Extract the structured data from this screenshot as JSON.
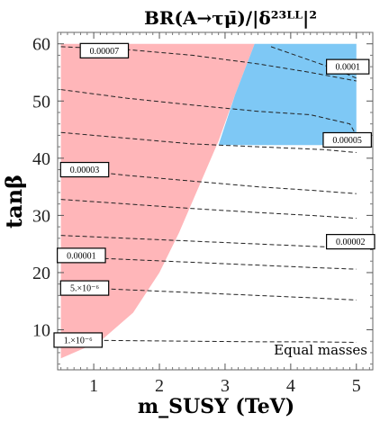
{
  "chart_data": {
    "type": "contour",
    "title": "BR(A→τμ̄)/|δ²³ᴸᴸ|²",
    "xlabel": "m_SUSY (TeV)",
    "ylabel": "tanβ",
    "xlim": [
      0.45,
      5.25
    ],
    "ylim": [
      3,
      62
    ],
    "xticks": [
      "1",
      "2",
      "3",
      "4",
      "5"
    ],
    "yticks": [
      "10",
      "20",
      "30",
      "40",
      "50",
      "60"
    ],
    "annotation": "Equal masses",
    "regions": [
      {
        "name": "pink-excluded",
        "color": "#ffb6b9",
        "boundary": [
          [
            0.5,
            5
          ],
          [
            1.1,
            8
          ],
          [
            1.6,
            13
          ],
          [
            2.0,
            20
          ],
          [
            2.3,
            27
          ],
          [
            2.6,
            35
          ],
          [
            2.9,
            43
          ],
          [
            3.15,
            51
          ],
          [
            3.45,
            60
          ],
          [
            0.5,
            60
          ]
        ]
      },
      {
        "name": "blue-excluded",
        "color": "#7ec8f5",
        "boundary": [
          [
            2.9,
            42.3
          ],
          [
            5.0,
            42.3
          ],
          [
            5.0,
            60
          ],
          [
            3.45,
            60
          ],
          [
            3.15,
            51
          ]
        ]
      }
    ],
    "contours": [
      {
        "label": "0.00007",
        "points": [
          [
            0.5,
            59.5
          ],
          [
            1.5,
            59.0
          ],
          [
            2.5,
            58.0
          ],
          [
            3.5,
            56.5
          ],
          [
            4.3,
            55.0
          ],
          [
            5.0,
            53.5
          ]
        ]
      },
      {
        "label": "0.0001",
        "points": [
          [
            3.7,
            59.5
          ],
          [
            4.2,
            57.5
          ],
          [
            4.7,
            55.5
          ],
          [
            5.0,
            54.0
          ]
        ]
      },
      {
        "label": "0.00005",
        "points": [
          [
            0.5,
            52.0
          ],
          [
            1.5,
            50.5
          ],
          [
            2.5,
            49.3
          ],
          [
            3.5,
            48.2
          ],
          [
            4.3,
            47.6
          ],
          [
            4.9,
            46.0
          ],
          [
            5.0,
            44.0
          ]
        ]
      },
      {
        "label": "",
        "points": [
          [
            0.5,
            44.5
          ],
          [
            1.5,
            43.5
          ],
          [
            2.5,
            42.5
          ],
          [
            3.5,
            42.0
          ],
          [
            4.5,
            41.5
          ],
          [
            5.0,
            41.0
          ]
        ]
      },
      {
        "label": "0.00003",
        "points": [
          [
            0.5,
            38.3
          ],
          [
            1.5,
            37.0
          ],
          [
            2.5,
            36.0
          ],
          [
            3.5,
            35.0
          ],
          [
            4.3,
            34.4
          ],
          [
            5.0,
            33.8
          ]
        ]
      },
      {
        "label": "",
        "points": [
          [
            0.5,
            32.8
          ],
          [
            1.5,
            32.0
          ],
          [
            2.5,
            31.2
          ],
          [
            3.5,
            30.5
          ],
          [
            4.3,
            30.0
          ],
          [
            5.0,
            29.5
          ]
        ]
      },
      {
        "label": "0.00002",
        "points": [
          [
            0.5,
            26.5
          ],
          [
            1.5,
            26.0
          ],
          [
            2.5,
            25.5
          ],
          [
            3.5,
            25.0
          ],
          [
            4.3,
            24.6
          ],
          [
            5.0,
            24.3
          ]
        ]
      },
      {
        "label": "0.00001",
        "points": [
          [
            0.5,
            22.8
          ],
          [
            1.5,
            22.3
          ],
          [
            2.5,
            21.8
          ],
          [
            3.5,
            21.3
          ],
          [
            4.3,
            20.9
          ],
          [
            5.0,
            20.6
          ]
        ]
      },
      {
        "label": "5.×10⁻⁶",
        "points": [
          [
            0.5,
            17.5
          ],
          [
            1.5,
            17.0
          ],
          [
            2.5,
            16.5
          ],
          [
            3.5,
            16.0
          ],
          [
            4.3,
            15.6
          ],
          [
            5.0,
            15.2
          ]
        ]
      },
      {
        "label": "1.×10⁻⁶",
        "points": [
          [
            0.5,
            8.2
          ],
          [
            1.5,
            8.1
          ],
          [
            2.5,
            8.0
          ],
          [
            3.5,
            7.9
          ],
          [
            4.3,
            7.9
          ],
          [
            5.0,
            7.8
          ]
        ]
      }
    ],
    "labels": [
      {
        "text": "0.00007",
        "at": [
          0.85,
          58.8
        ]
      },
      {
        "text": "0.0001",
        "at": [
          4.6,
          56.0
        ]
      },
      {
        "text": "0.00005",
        "at": [
          4.55,
          43.2
        ]
      },
      {
        "text": "0.00003",
        "at": [
          0.55,
          38.0
        ]
      },
      {
        "text": "0.00002",
        "at": [
          4.6,
          25.4
        ]
      },
      {
        "text": "0.00001",
        "at": [
          0.5,
          23.0
        ]
      },
      {
        "text": "5.×10⁻⁶",
        "at": [
          0.55,
          17.3
        ]
      },
      {
        "text": "1.×10⁻⁶",
        "at": [
          0.45,
          8.2
        ]
      }
    ]
  }
}
